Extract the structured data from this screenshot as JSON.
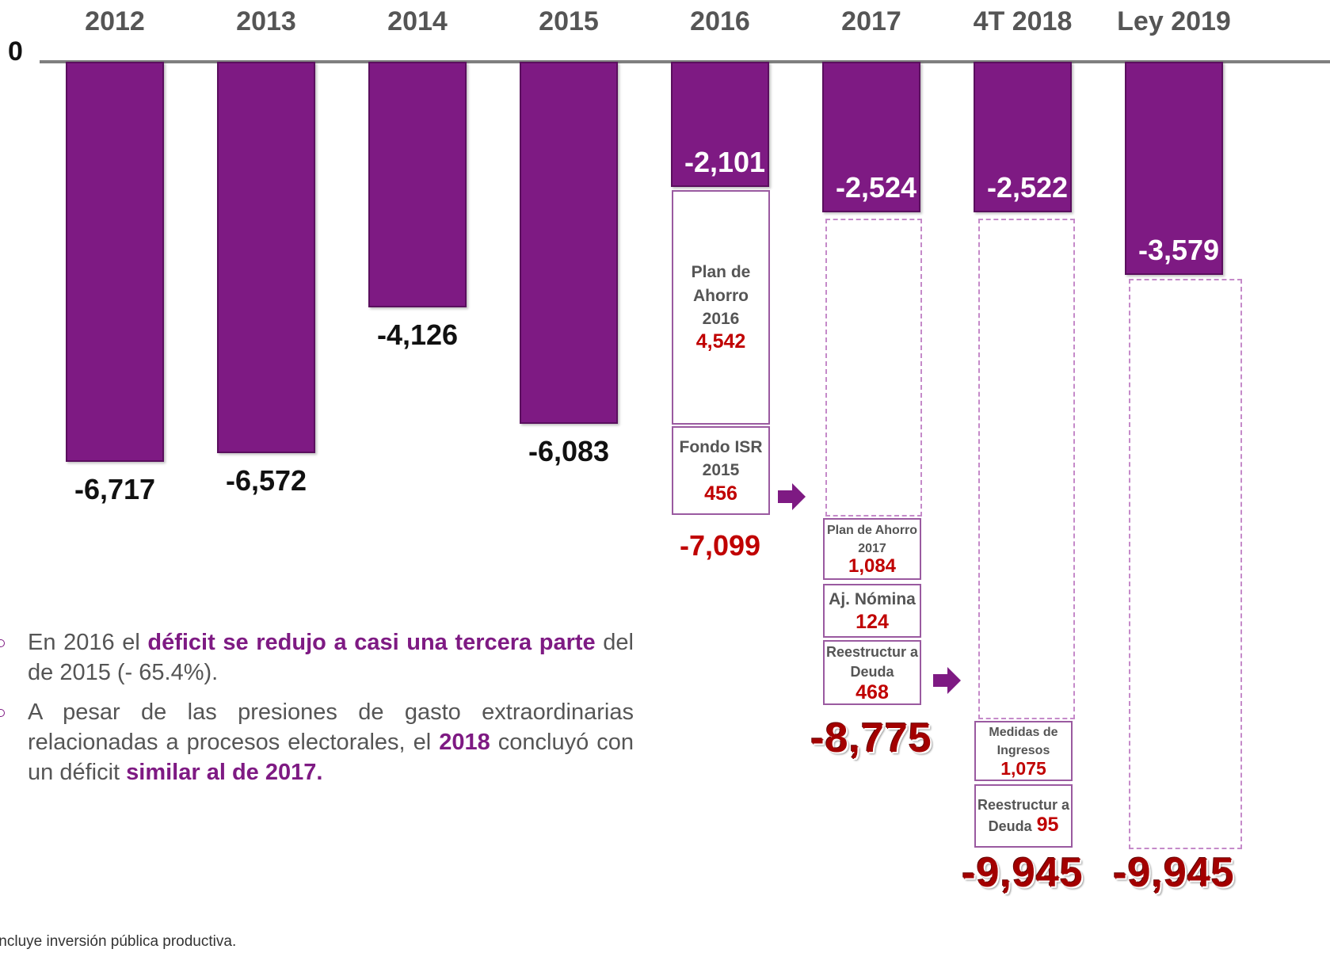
{
  "chart_data": {
    "type": "bar",
    "categories": [
      "2012",
      "2013",
      "2014",
      "2015",
      "2016",
      "2017",
      "4T 2018",
      "Ley 2019"
    ],
    "values": [
      -6717,
      -6572,
      -4126,
      -6083,
      -2101,
      -2524,
      -2522,
      -3579
    ],
    "value_labels": [
      "-6,717",
      "-6,572",
      "-4,126",
      "-6,083",
      "-2,101",
      "-2,524",
      "-2,522",
      "-3,579"
    ],
    "color": "#7e1a83",
    "ylim": [
      -10000,
      0
    ],
    "yticks": [
      0
    ],
    "adjustments": [
      null,
      null,
      null,
      null,
      {
        "items": [
          {
            "label": "Plan de Ahorro 2016",
            "value": 4542,
            "value_label": "4,542"
          },
          {
            "label": "Fondo ISR 2015",
            "value": 456,
            "value_label": "456"
          }
        ],
        "total": -7099,
        "total_label": "-7,099"
      },
      {
        "items": [
          {
            "label": "Plan de Ahorro 2017",
            "value": 1084,
            "value_label": "1,084"
          },
          {
            "label": "Aj. Nómina",
            "value": 124,
            "value_label": "124"
          },
          {
            "label": "Reestructur a Deuda",
            "value": 468,
            "value_label": "468"
          }
        ],
        "total": -8775,
        "total_label": "-8,775"
      },
      {
        "items": [
          {
            "label": "Medidas de Ingresos",
            "value": 1075,
            "value_label": "1,075"
          },
          {
            "label": "Reestructur a Deuda",
            "value": 95,
            "value_label": "95"
          }
        ],
        "total": -9945,
        "total_label": "-9,945"
      },
      {
        "items": [],
        "total": -9945,
        "total_label": "-9,945"
      }
    ]
  },
  "bullets": [
    [
      "En 2016 el ",
      "déficit se redujo a casi una tercera parte",
      " del de 2015 (- 65.4%)."
    ],
    [
      "A pesar de las presiones de gasto extraordinarias relacionadas a procesos electorales, el ",
      "2018",
      " concluyó con un déficit ",
      "similar al de 2017."
    ]
  ],
  "footnote": "Incluye inversión pública productiva."
}
